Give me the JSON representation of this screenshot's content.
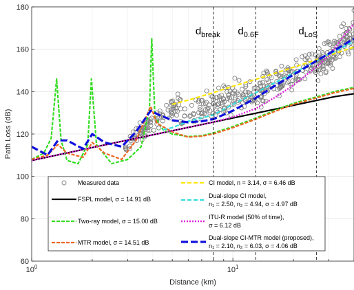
{
  "chart_data": {
    "type": "line",
    "title": "",
    "xlabel": "Distance (km)",
    "ylabel": "Path Loss (dB)",
    "xscale": "log",
    "xlim": [
      1,
      40
    ],
    "ylim": [
      60,
      180
    ],
    "grid": true,
    "x_ticks": [
      {
        "value": 1,
        "label_base": "10",
        "label_exp": "0"
      },
      {
        "value": 10,
        "label_base": "10",
        "label_exp": "1"
      }
    ],
    "y_ticks": [
      60,
      80,
      100,
      120,
      140,
      160,
      180
    ],
    "legend_position": "bottom-center",
    "vertical_lines": [
      {
        "x": 8,
        "label_main": "d",
        "label_sub": "break"
      },
      {
        "x": 13,
        "label_main": "d",
        "label_sub": "0.6F"
      },
      {
        "x": 26,
        "label_main": "d",
        "label_sub": "LoS"
      }
    ],
    "series": [
      {
        "name": "Measured data",
        "kind": "scatter",
        "color": "#808080",
        "ranges": [
          {
            "from": 2.9,
            "to": 5.5,
            "n": 90,
            "base_start": 114,
            "base_end": 136,
            "spread": 5
          },
          {
            "from": 5.5,
            "to": 12,
            "n": 110,
            "base_start": 127,
            "base_end": 140,
            "spread": 7
          },
          {
            "from": 12,
            "to": 25,
            "n": 120,
            "base_start": 138,
            "base_end": 154,
            "spread": 7
          },
          {
            "from": 25,
            "to": 40,
            "n": 110,
            "base_start": 150,
            "base_end": 168,
            "spread": 8
          }
        ]
      },
      {
        "name": "FSPL model, σ = 14.91 dB",
        "kind": "line",
        "color": "#000000",
        "dash": "",
        "width": 2.2,
        "x": [
          1,
          2,
          4,
          8,
          16,
          32,
          40
        ],
        "y": [
          107.5,
          113.6,
          119.6,
          125.6,
          131.6,
          137.6,
          139
        ]
      },
      {
        "name": "Two-ray model, σ = 15.00 dB",
        "kind": "line",
        "color": "#33dd22",
        "dash": "5,2",
        "width": 2.2,
        "x": [
          1,
          1.15,
          1.25,
          1.33,
          1.4,
          1.5,
          1.7,
          1.9,
          1.98,
          2.1,
          2.5,
          3,
          3.5,
          3.85,
          3.95,
          4.1,
          4.5,
          5,
          6,
          7,
          8,
          10,
          13,
          16,
          20,
          26,
          32,
          40
        ],
        "y": [
          108,
          111,
          118,
          146,
          117,
          107.5,
          106,
          115,
          146,
          115,
          106,
          108,
          114,
          132,
          165,
          128,
          122,
          120,
          118.8,
          119.2,
          120.5,
          123.5,
          127.5,
          131,
          134.5,
          137.5,
          140,
          142
        ]
      },
      {
        "name": "MTR model, σ = 14.51 dB",
        "kind": "line",
        "color": "#ee6622",
        "dash": "5,2",
        "width": 2.2,
        "x": [
          1,
          1.2,
          1.35,
          1.5,
          1.8,
          2,
          2.3,
          2.8,
          3.3,
          3.9,
          4.2,
          5,
          6,
          7,
          8,
          10,
          13,
          16,
          20,
          26,
          32,
          40
        ],
        "y": [
          108,
          110,
          115,
          111,
          109,
          116,
          111,
          108,
          117,
          133,
          125,
          121,
          118.5,
          119,
          120,
          123,
          127,
          130.5,
          134,
          137,
          139.5,
          141.5
        ]
      },
      {
        "name": "CI model, n = 3.14, σ = 6.46 dB",
        "kind": "line",
        "color": "#ffe600",
        "dash": "6,3",
        "width": 2.2,
        "x": [
          5,
          6,
          8,
          10,
          13,
          16,
          20,
          26,
          32,
          40
        ],
        "y": [
          134,
          136,
          139.5,
          142.5,
          145.8,
          148.5,
          151.5,
          155,
          158,
          161
        ]
      },
      {
        "name": "Dual-slope CI model,",
        "name_line2": "n₁ = 2.50, n₂ = 4.94, σ = 4.97 dB",
        "kind": "line",
        "color": "#33dddd",
        "dash": "6,3",
        "width": 2.2,
        "x": [
          4.5,
          5,
          6,
          8,
          10,
          13,
          16,
          20,
          26,
          32,
          40
        ],
        "y": [
          122,
          123,
          126,
          129,
          134,
          139.5,
          144,
          148.8,
          154.4,
          158.9,
          163.7
        ]
      },
      {
        "name": "ITU-R model (50% of time),",
        "name_line2": "σ = 6.12 dB",
        "kind": "line",
        "color": "#dd22dd",
        "dash": "2,2",
        "width": 2.4,
        "x": [
          1,
          2,
          4,
          8,
          10,
          13,
          16,
          20,
          24,
          27,
          30,
          33,
          36,
          40
        ],
        "y": [
          107.5,
          113.6,
          119.6,
          125.6,
          128,
          132,
          137,
          143,
          149,
          153,
          157,
          162,
          167,
          172
        ]
      },
      {
        "name": "Dual-slope CI-MTR model (proposed),",
        "name_line2": "n₁ = 2.10, n₂ = 6.03, σ = 4.06 dB",
        "kind": "line",
        "color": "#1111dd",
        "dash": "10,4",
        "width": 3.2,
        "x": [
          1,
          1.2,
          1.35,
          1.5,
          1.8,
          2,
          2.3,
          2.8,
          3.3,
          3.9,
          4.3,
          5,
          6,
          7,
          8,
          10,
          13,
          16,
          20,
          26,
          32,
          40
        ],
        "y": [
          114,
          110,
          117,
          117,
          113,
          120,
          116,
          114,
          121,
          131,
          129,
          126.5,
          125.5,
          126,
          127,
          131,
          137,
          142.5,
          148,
          154.5,
          159.5,
          165
        ]
      }
    ]
  }
}
